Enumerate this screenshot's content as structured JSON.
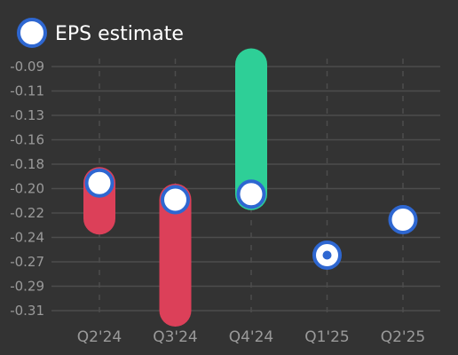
{
  "chart_data": {
    "type": "range-bar",
    "legend": {
      "label": "EPS estimate",
      "placement": "top-left"
    },
    "categories": [
      "Q2'24",
      "Q3'24",
      "Q4'24",
      "Q1'25",
      "Q2'25"
    ],
    "series": [
      {
        "name": "EPS estimate",
        "values": [
          -0.195,
          -0.21,
          -0.205,
          -0.26,
          -0.228
        ]
      }
    ],
    "actual": [
      -0.227,
      -0.31,
      -0.088,
      null,
      null
    ],
    "y_ticks": [
      "-0.09",
      "-0.11",
      "-0.13",
      "-0.16",
      "-0.18",
      "-0.20",
      "-0.22",
      "-0.24",
      "-0.27",
      "-0.29",
      "-0.31"
    ],
    "ylim": [
      -0.31,
      -0.09
    ],
    "grid": true,
    "colors": {
      "background": "#333333",
      "beat": "#2ecf97",
      "miss": "#dc4059",
      "marker_fill": "#ffffff",
      "marker_stroke": "#2e67d1",
      "grid": "#4d4d4d",
      "tick_text": "#9a9a9a",
      "legend_text": "#ffffff"
    }
  }
}
